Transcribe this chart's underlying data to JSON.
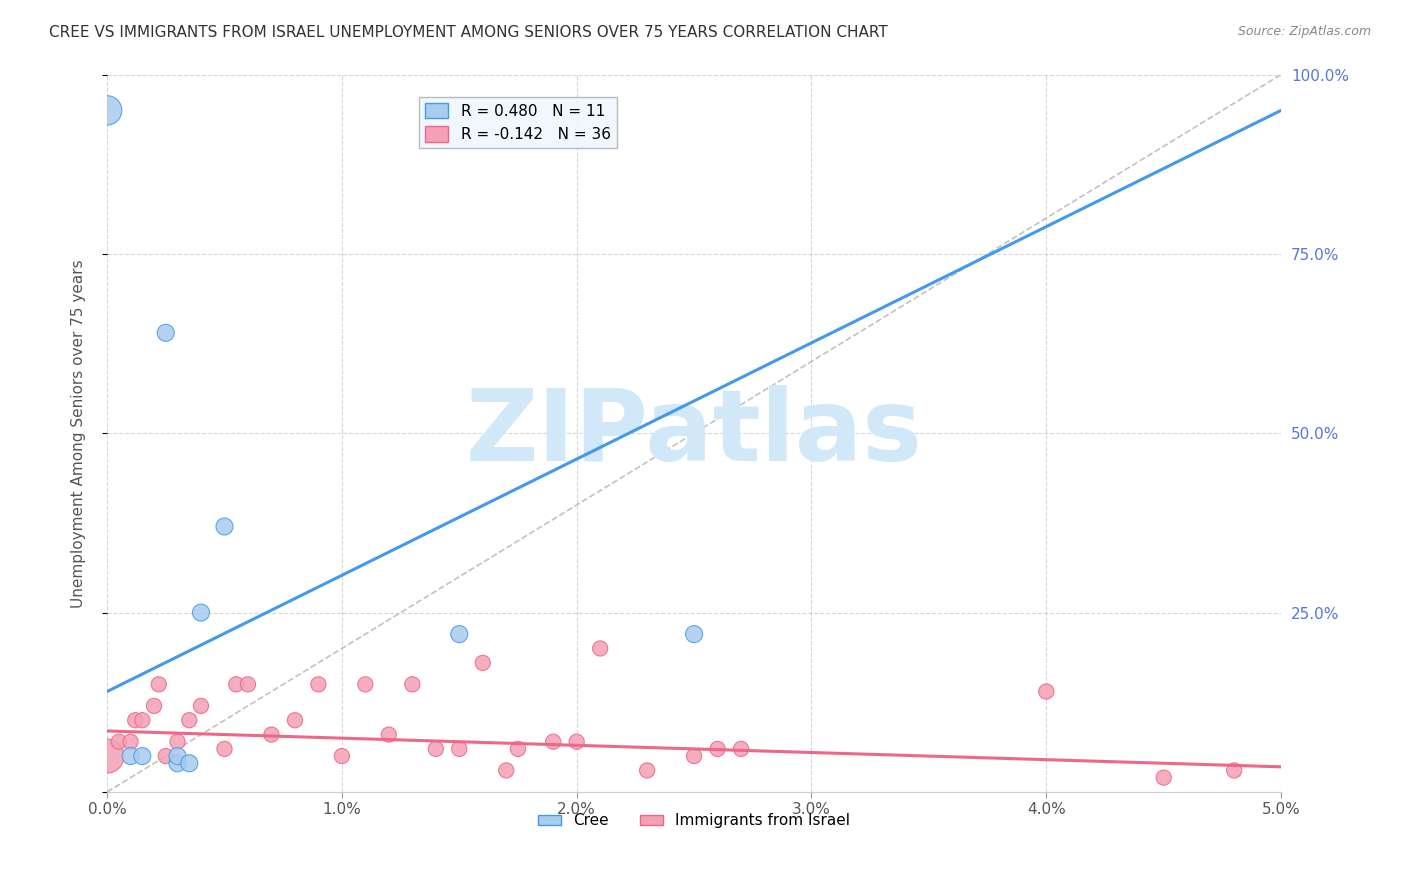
{
  "title": "CREE VS IMMIGRANTS FROM ISRAEL UNEMPLOYMENT AMONG SENIORS OVER 75 YEARS CORRELATION CHART",
  "source": "Source: ZipAtlas.com",
  "ylabel": "Unemployment Among Seniors over 75 years",
  "x_tick_labels": [
    "0.0%",
    "1.0%",
    "2.0%",
    "3.0%",
    "4.0%",
    "5.0%"
  ],
  "x_tick_values": [
    0.0,
    1.0,
    2.0,
    3.0,
    4.0,
    5.0
  ],
  "y_tick_values": [
    0,
    25,
    50,
    75,
    100
  ],
  "y_tick_labels_right": [
    "",
    "25.0%",
    "50.0%",
    "75.0%",
    "100.0%"
  ],
  "xlim": [
    0.0,
    5.0
  ],
  "ylim": [
    0,
    100
  ],
  "cree_color": "#A8CCEE",
  "israel_color": "#F4A0B5",
  "cree_line_color": "#4499EE",
  "israel_line_color": "#EE6688",
  "ref_line_color": "#BBBBBB",
  "legend_box_color": "#EEF6FF",
  "cree_R": 0.48,
  "cree_N": 11,
  "israel_R": -0.142,
  "israel_N": 36,
  "cree_scatter_x": [
    0.0,
    0.25,
    0.3,
    0.5,
    1.5,
    2.5,
    0.1,
    0.15,
    0.3,
    0.35,
    0.4
  ],
  "cree_scatter_y": [
    95,
    64,
    4,
    37,
    22,
    22,
    5,
    5,
    5,
    4,
    25
  ],
  "cree_scatter_sizes": [
    450,
    150,
    150,
    150,
    150,
    150,
    150,
    150,
    150,
    150,
    150
  ],
  "israel_scatter_x": [
    0.0,
    0.05,
    0.1,
    0.12,
    0.15,
    0.2,
    0.22,
    0.25,
    0.3,
    0.35,
    0.4,
    0.5,
    0.55,
    0.6,
    0.7,
    0.8,
    0.9,
    1.0,
    1.1,
    1.2,
    1.3,
    1.4,
    1.5,
    1.6,
    1.7,
    1.75,
    1.9,
    2.0,
    2.1,
    2.3,
    2.5,
    2.6,
    2.7,
    4.0,
    4.5,
    4.8
  ],
  "israel_scatter_y": [
    5,
    7,
    7,
    10,
    10,
    12,
    15,
    5,
    7,
    10,
    12,
    6,
    15,
    15,
    8,
    10,
    15,
    5,
    15,
    8,
    15,
    6,
    6,
    18,
    3,
    6,
    7,
    7,
    20,
    3,
    5,
    6,
    6,
    14,
    2,
    3
  ],
  "israel_scatter_sizes": [
    600,
    120,
    120,
    120,
    120,
    120,
    120,
    120,
    120,
    120,
    120,
    120,
    120,
    120,
    120,
    120,
    120,
    120,
    120,
    120,
    120,
    120,
    120,
    120,
    120,
    120,
    120,
    120,
    120,
    120,
    120,
    120,
    120,
    120,
    120,
    120
  ],
  "cree_line_x0": 0.0,
  "cree_line_y0": 14.0,
  "cree_line_x1": 5.0,
  "cree_line_y1": 95.0,
  "israel_line_x0": 0.0,
  "israel_line_y0": 8.5,
  "israel_line_x1": 5.0,
  "israel_line_y1": 3.5,
  "background_color": "#FFFFFF",
  "watermark_text": "ZIPatlas",
  "watermark_color": "#D0E8F8",
  "watermark_fontsize": 72
}
